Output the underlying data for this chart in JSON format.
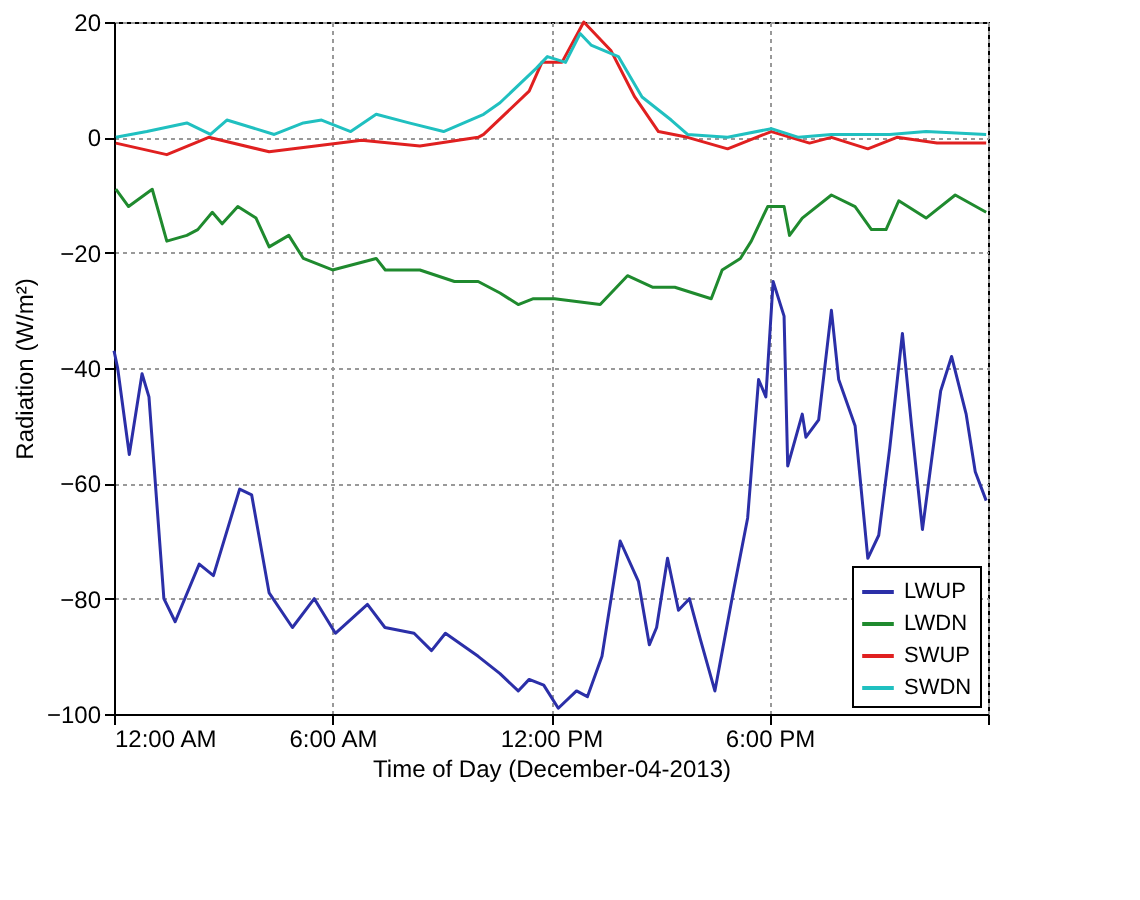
{
  "chart_data": {
    "type": "line",
    "xlabel": "Time of Day (December-04-2013)",
    "ylabel": "Radiation (W/m²)",
    "xlim": [
      0,
      24
    ],
    "xticks": [
      {
        "value": 0,
        "label": "12:00 AM"
      },
      {
        "value": 6,
        "label": "6:00 AM"
      },
      {
        "value": 12,
        "label": "12:00 PM"
      },
      {
        "value": 18,
        "label": "6:00 PM"
      },
      {
        "value": 24,
        "label": null
      }
    ],
    "ylim": [
      -100,
      20
    ],
    "yticks": [
      -100,
      -80,
      -60,
      -40,
      -20,
      0,
      20
    ],
    "grid": true,
    "legend": "bottom right",
    "line_style": "solid",
    "marker": "none",
    "series": [
      {
        "name": "LWUP",
        "color": "#2b2fa8",
        "x": [
          0,
          0.1,
          0.42,
          0.77,
          0.96,
          1.37,
          1.68,
          2.34,
          2.73,
          3.45,
          3.78,
          4.26,
          4.9,
          5.5,
          6.08,
          6.96,
          7.44,
          8.24,
          8.72,
          9.1,
          10,
          10.6,
          11.1,
          11.4,
          11.8,
          12.2,
          12.7,
          13.0,
          13.4,
          13.9,
          14.4,
          14.7,
          14.9,
          15.2,
          15.5,
          15.8,
          16.1,
          16.5,
          17.0,
          17.4,
          17.7,
          17.9,
          18.1,
          18.4,
          18.5,
          18.9,
          19.0,
          19.35,
          19.7,
          19.9,
          20.35,
          20.7,
          21.0,
          21.3,
          21.65,
          21.9,
          22.2,
          22.7,
          23.0,
          23.4,
          23.65,
          23.95
        ],
        "values": [
          -37,
          -40,
          -55,
          -41,
          -45,
          -80,
          -84,
          -74,
          -76,
          -61,
          -62,
          -79,
          -85,
          -80,
          -86,
          -81,
          -85,
          -86,
          -89,
          -86,
          -90,
          -93,
          -96,
          -94,
          -95,
          -99,
          -96,
          -97,
          -90,
          -70,
          -77,
          -88,
          -85,
          -73,
          -82,
          -80,
          -87,
          -96,
          -79,
          -66,
          -42,
          -45,
          -25,
          -31,
          -57,
          -48,
          -52,
          -49,
          -30,
          -42,
          -50,
          -73,
          -69,
          -54,
          -34,
          -50,
          -68,
          -44,
          -38,
          -48,
          -58,
          -63
        ]
      },
      {
        "name": "LWDN",
        "color": "#1f8a2e",
        "x": [
          0.05,
          0.4,
          1.05,
          1.45,
          2.0,
          2.3,
          2.7,
          2.97,
          3.4,
          3.9,
          4.26,
          4.8,
          5.2,
          6.0,
          7.2,
          7.45,
          8.4,
          9.35,
          10,
          10.6,
          11.1,
          11.5,
          12.1,
          13.35,
          14.1,
          14.8,
          15.4,
          16.4,
          16.7,
          17.2,
          17.5,
          17.95,
          18.4,
          18.55,
          18.9,
          19.7,
          20.35,
          20.8,
          21.2,
          21.55,
          22.3,
          23.1,
          23.95
        ],
        "values": [
          -9,
          -12,
          -9,
          -18,
          -17,
          -16,
          -13,
          -15,
          -12,
          -14,
          -19,
          -17,
          -21,
          -23,
          -21,
          -23,
          -23,
          -25,
          -25,
          -27,
          -29,
          -28,
          -28,
          -29,
          -24,
          -26,
          -26,
          -28,
          -23,
          -21,
          -18,
          -12,
          -12,
          -17,
          -14,
          -10,
          -12,
          -16,
          -16,
          -11,
          -14,
          -10,
          -13
        ]
      },
      {
        "name": "SWUP",
        "color": "#e02020",
        "x": [
          0.05,
          1.45,
          2.6,
          4.26,
          6.8,
          8.4,
          10,
          10.15,
          11.4,
          11.75,
          12.3,
          12.9,
          13.65,
          14.3,
          14.95,
          15.75,
          16.85,
          18.05,
          19.1,
          19.7,
          20.7,
          21.5,
          22.6,
          23.95
        ],
        "values": [
          -1,
          -3,
          0,
          -2.5,
          -0.5,
          -1.5,
          0,
          0.5,
          8,
          13,
          13,
          20,
          15,
          7,
          1,
          0,
          -2,
          1,
          -1,
          0,
          -2,
          0,
          -1,
          -1
        ]
      },
      {
        "name": "SWDN",
        "color": "#20c0c0",
        "x": [
          0.05,
          0.9,
          2.0,
          2.65,
          3.1,
          4.4,
          5.2,
          5.7,
          6.5,
          7.2,
          8.1,
          9.05,
          10.15,
          10.6,
          11.6,
          11.9,
          12.4,
          12.8,
          13.1,
          13.85,
          14.5,
          15.3,
          15.75,
          16.85,
          18.05,
          18.8,
          19.7,
          21.3,
          22.3,
          23.95
        ],
        "values": [
          0,
          1,
          2.5,
          0.5,
          3,
          0.5,
          2.5,
          3,
          1,
          4,
          2.5,
          1,
          4,
          6,
          12,
          14,
          13,
          18,
          16,
          14,
          7,
          3,
          0.5,
          0,
          1.5,
          0,
          0.5,
          0.5,
          1,
          0.5
        ]
      }
    ]
  }
}
